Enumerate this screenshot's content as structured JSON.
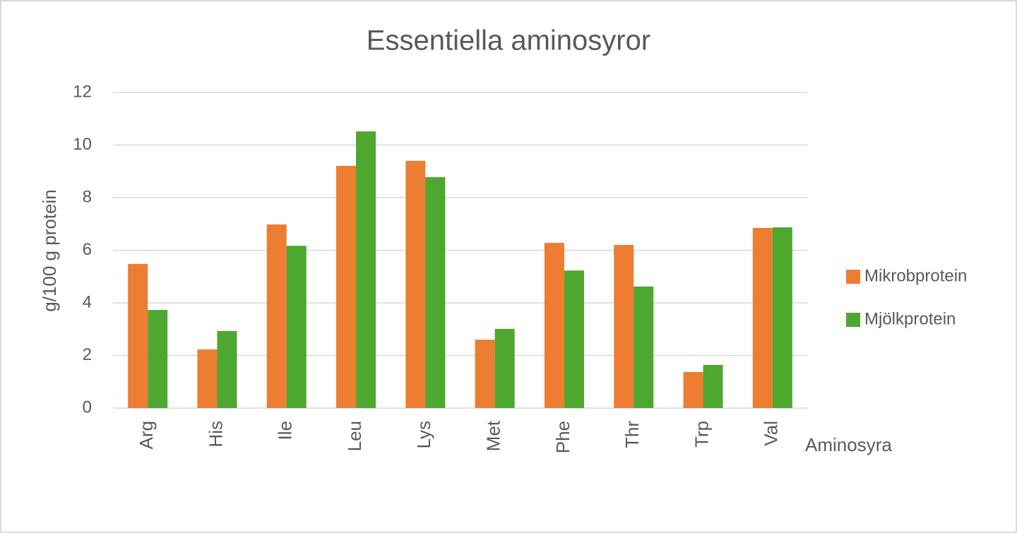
{
  "chart_data": {
    "type": "bar",
    "title": "Essentiella aminosyror",
    "x_label": "Aminosyra",
    "y_label": "g/100 g protein",
    "categories": [
      "Arg",
      "His",
      "Ile",
      "Leu",
      "Lys",
      "Met",
      "Phe",
      "Thr",
      "Trp",
      "Val"
    ],
    "series": [
      {
        "name": "Mikrobprotein",
        "color": "#ed7d31",
        "values": [
          5.48,
          2.23,
          6.98,
          9.21,
          9.4,
          2.6,
          6.28,
          6.2,
          1.37,
          6.85
        ]
      },
      {
        "name": "Mjölkprotein",
        "color": "#4ea72e",
        "values": [
          3.73,
          2.93,
          6.17,
          10.52,
          8.78,
          3.01,
          5.23,
          4.62,
          1.64,
          6.87
        ]
      }
    ],
    "ylim": [
      0,
      12
    ],
    "yticks": [
      0,
      2,
      4,
      6,
      8,
      10,
      12
    ],
    "grid": true,
    "legend": "right"
  }
}
